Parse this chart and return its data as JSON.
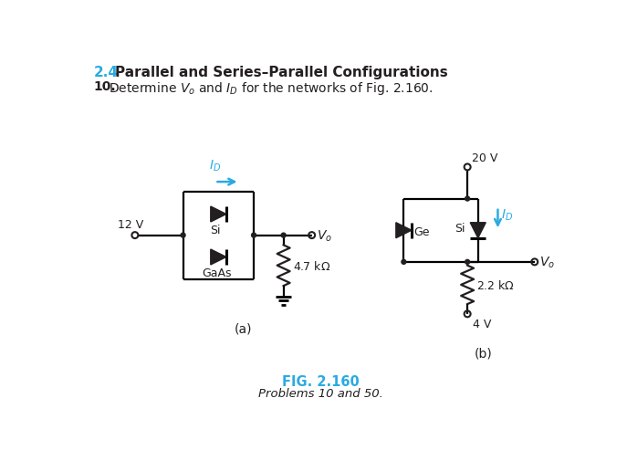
{
  "title_section": "2.4",
  "title_text": "Parallel and Series–Parallel Configurations",
  "problem_num": "10.",
  "fig_label": "FIG. 2.160",
  "fig_caption": "Problems 10 and 50.",
  "bg_color": "#ffffff",
  "cyan_color": "#29ABE2",
  "black_color": "#231F20"
}
